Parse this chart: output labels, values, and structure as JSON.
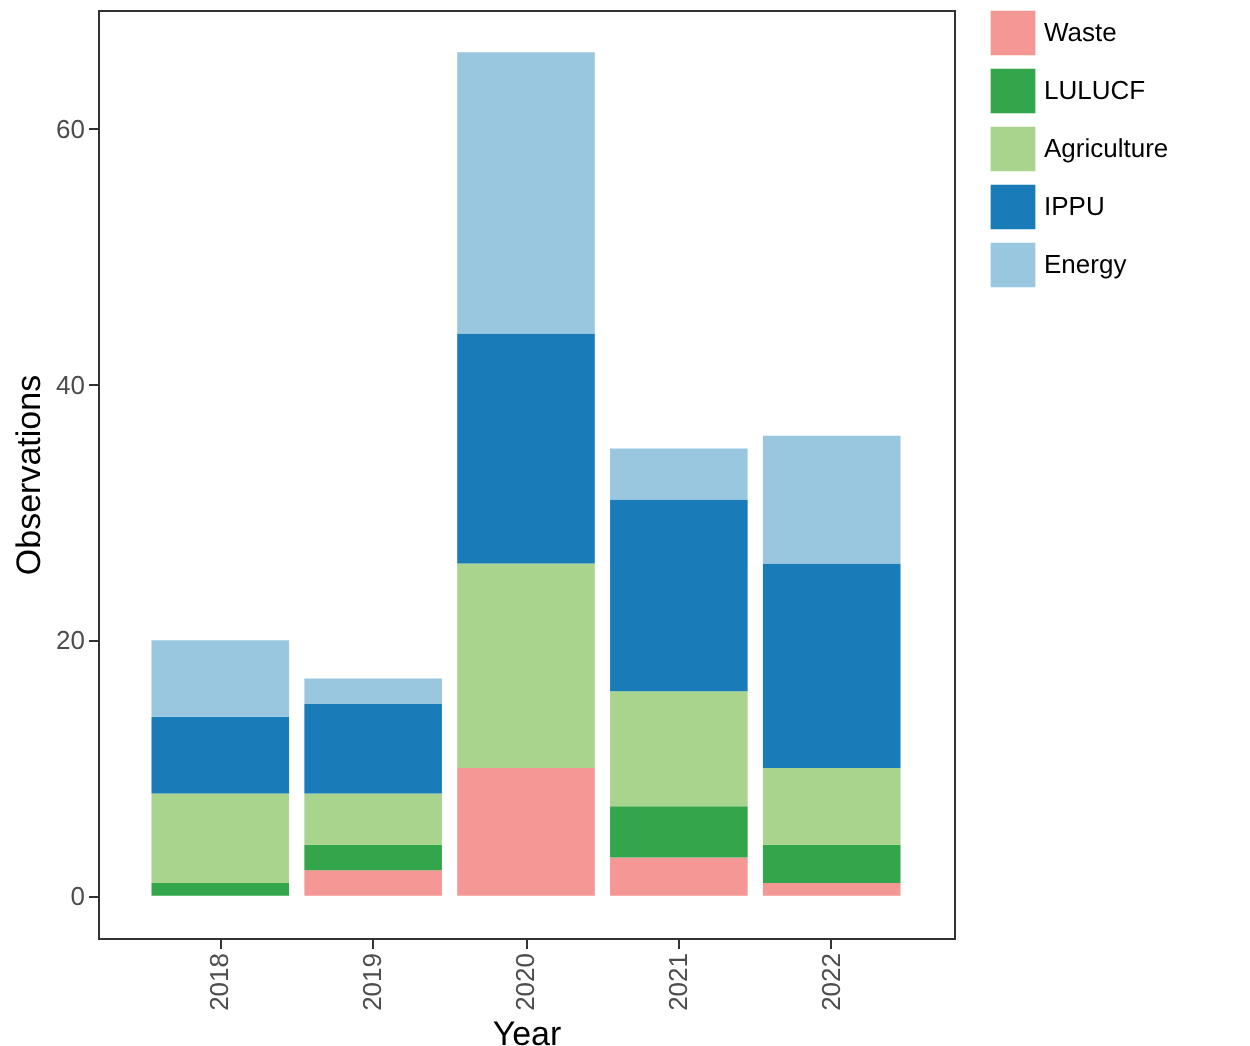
{
  "chart_data": {
    "type": "bar",
    "stacked": true,
    "xlabel": "Year",
    "ylabel": "Observations",
    "categories": [
      "2018",
      "2019",
      "2020",
      "2021",
      "2022"
    ],
    "series": [
      {
        "name": "Waste",
        "color": "#f59795",
        "values": [
          0,
          2,
          10,
          3,
          1
        ]
      },
      {
        "name": "LULUCF",
        "color": "#33a54a",
        "values": [
          1,
          2,
          0,
          4,
          3
        ]
      },
      {
        "name": "Agriculture",
        "color": "#a8d48d",
        "values": [
          7,
          4,
          16,
          9,
          6
        ]
      },
      {
        "name": "IPPU",
        "color": "#1a7bb9",
        "values": [
          6,
          7,
          18,
          15,
          16
        ]
      },
      {
        "name": "Energy",
        "color": "#99c7df",
        "values": [
          6,
          2,
          22,
          4,
          10
        ]
      }
    ],
    "ylim": [
      -3.3,
      69.3
    ],
    "yticks": [
      0,
      20,
      40,
      60
    ],
    "grid": false,
    "legend": "right"
  }
}
